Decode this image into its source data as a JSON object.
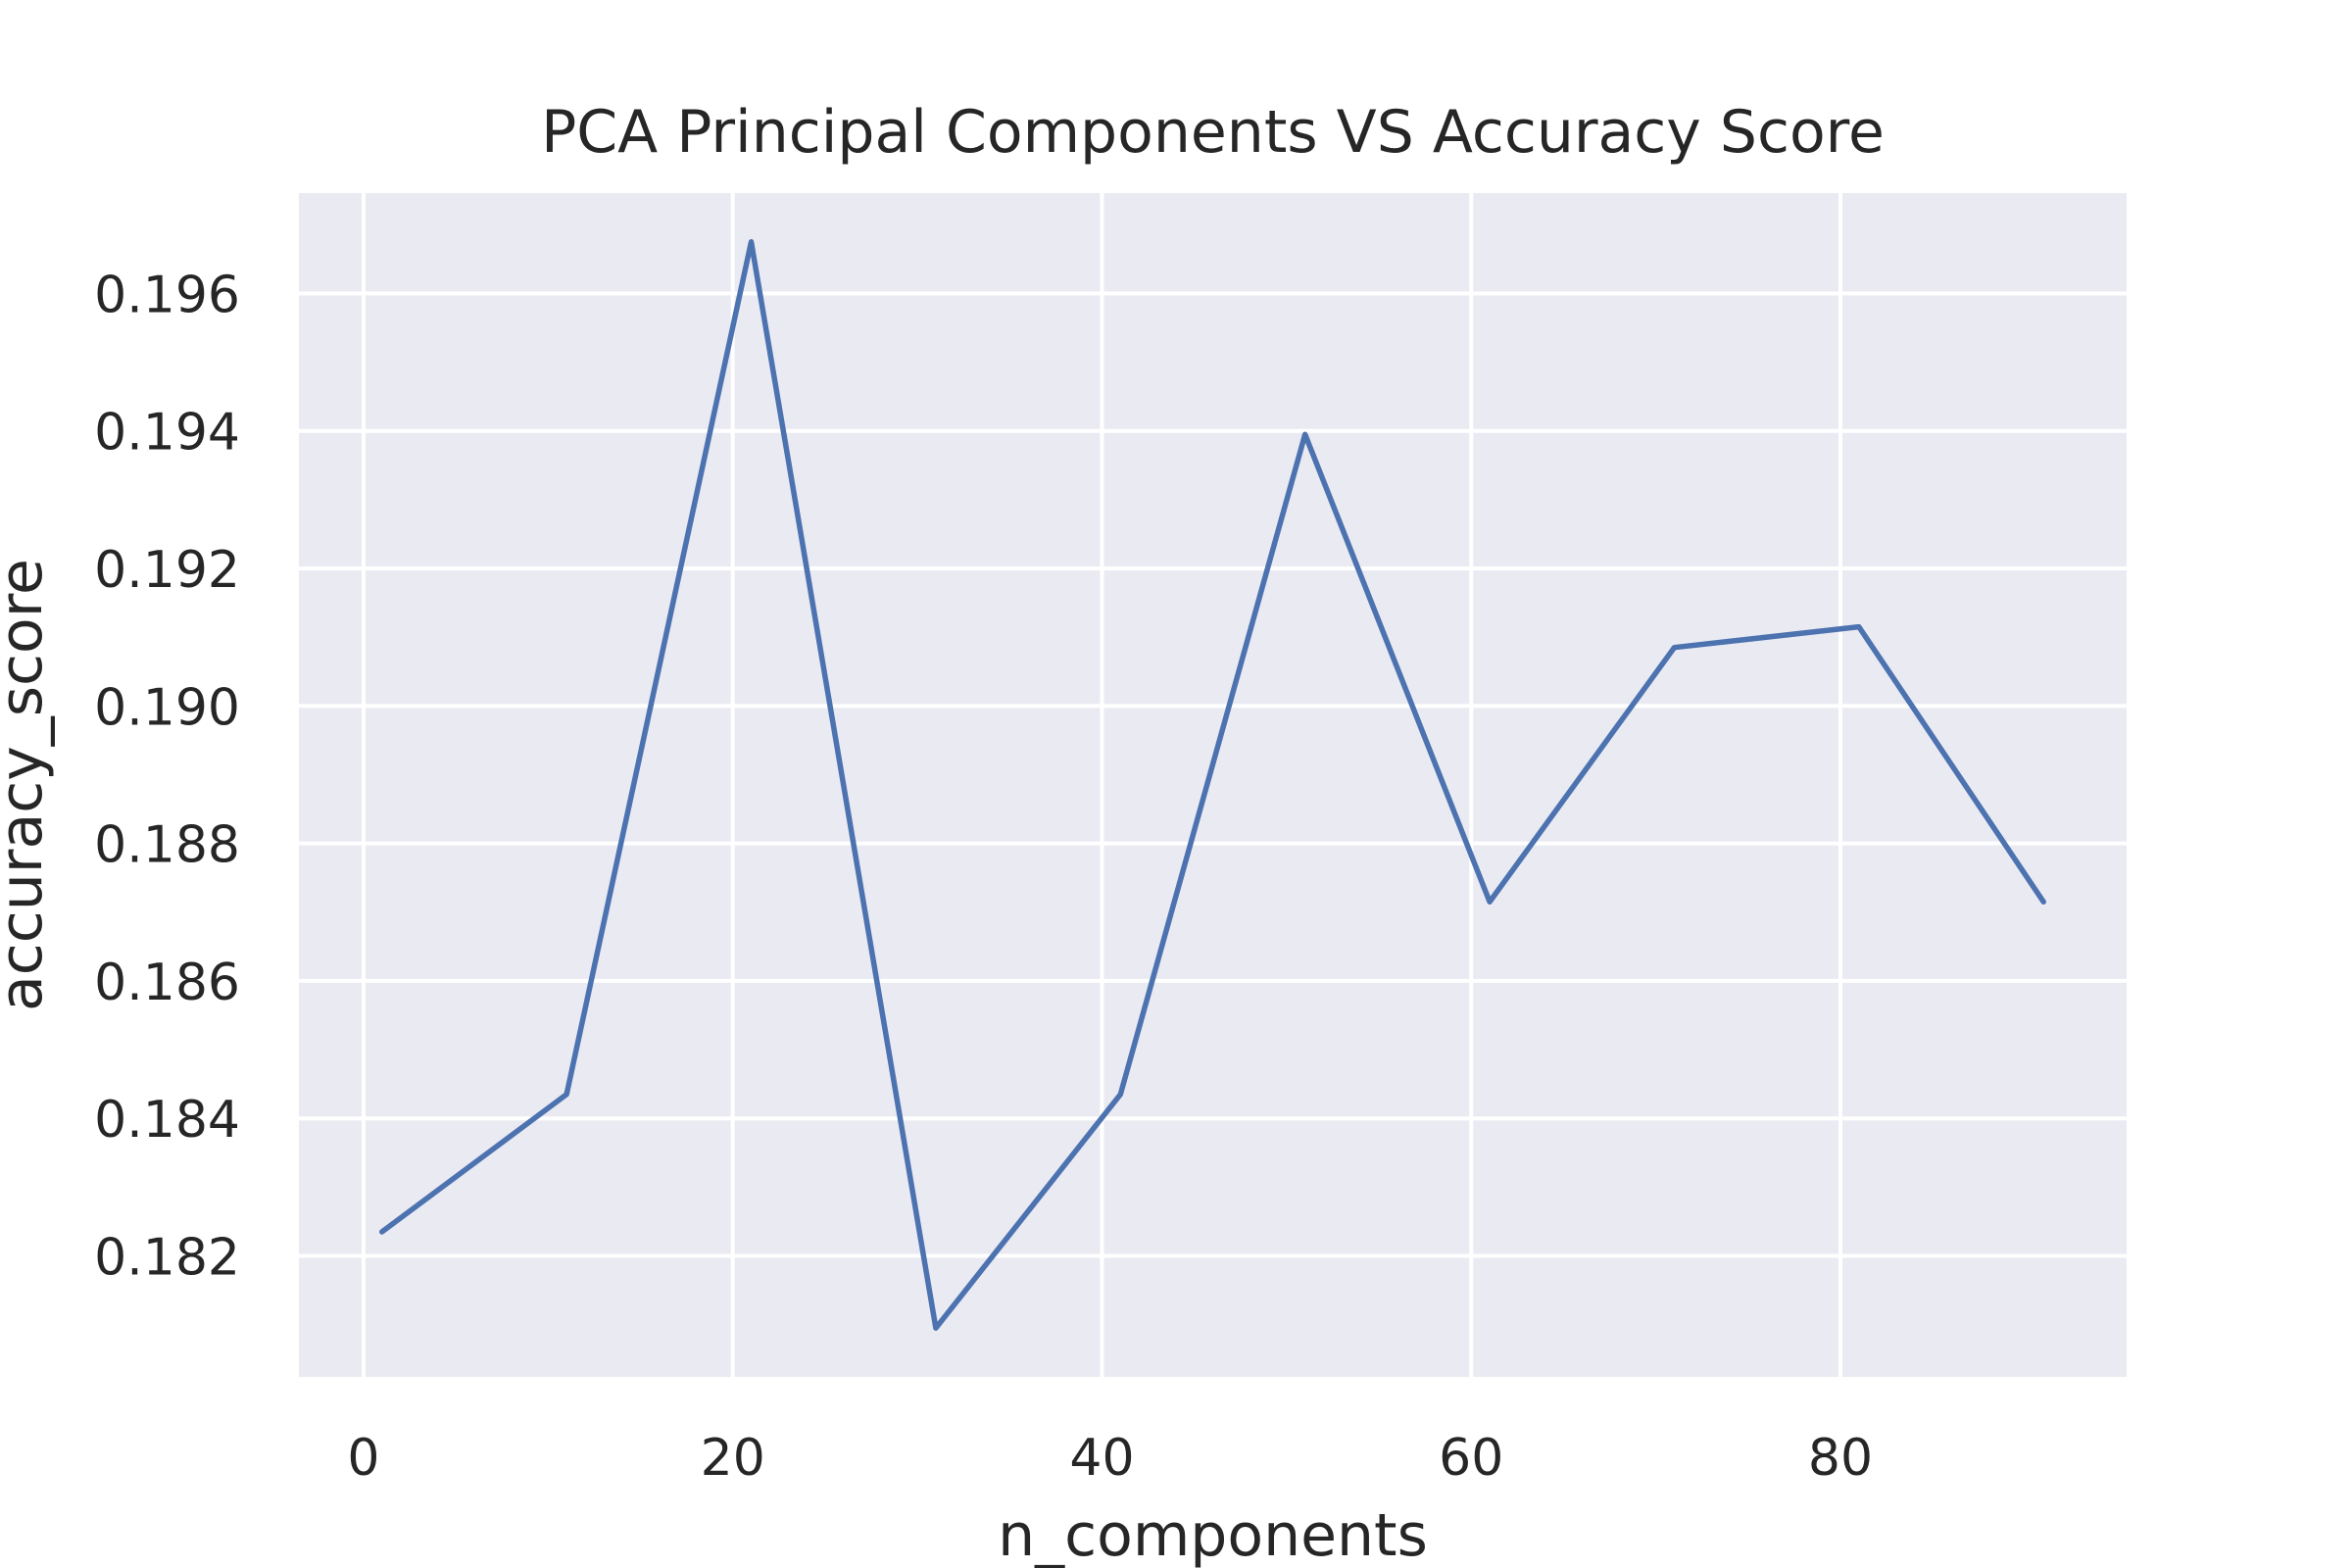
{
  "chart_data": {
    "type": "line",
    "title": "PCA Principal Components VS Accuracy Score",
    "xlabel": "n_components",
    "ylabel": "accuracy_score",
    "x": [
      1,
      11,
      21,
      31,
      41,
      51,
      61,
      71,
      81,
      91
    ],
    "series": [
      {
        "values": [
          0.18235,
          0.18435,
          0.19675,
          0.18095,
          0.18435,
          0.19395,
          0.18715,
          0.19085,
          0.19115,
          0.18715
        ],
        "color": "#4c72b0"
      }
    ],
    "xticks": [
      0,
      20,
      40,
      60,
      80
    ],
    "xtick_labels": [
      "0",
      "20",
      "40",
      "60",
      "80"
    ],
    "yticks": [
      0.182,
      0.184,
      0.186,
      0.188,
      0.19,
      0.192,
      0.194,
      0.196
    ],
    "ytick_labels": [
      "0.182",
      "0.184",
      "0.186",
      "0.188",
      "0.190",
      "0.192",
      "0.194",
      "0.196"
    ],
    "xlim": [
      -3.5,
      95.5
    ],
    "ylim": [
      0.18024,
      0.19746
    ],
    "grid": true,
    "background_color": "#eaeaf2"
  }
}
